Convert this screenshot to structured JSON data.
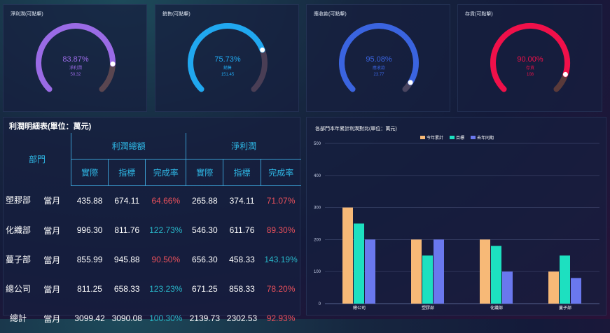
{
  "gauges": [
    {
      "title": "淨利潤(可點擊)",
      "percent": "83.87%",
      "label": "淨利潤",
      "value": "50.32",
      "color": "#9a6be6",
      "track": "#5a4650",
      "fraction": 0.8387
    },
    {
      "title": "銷售(可點擊)",
      "percent": "75.73%",
      "label": "銷售",
      "value": "151.45",
      "color": "#20a8f0",
      "track": "#4a3e55",
      "fraction": 0.7573
    },
    {
      "title": "應收款(可點擊)",
      "percent": "95.08%",
      "label": "應收款",
      "value": "23.77",
      "color": "#3a64e0",
      "track": "#4a4560",
      "fraction": 0.9508
    },
    {
      "title": "存貨(可點擊)",
      "percent": "90.00%",
      "label": "存貨",
      "value": "108",
      "color": "#f0104a",
      "track": "#5a3a3a",
      "fraction": 0.9
    }
  ],
  "table": {
    "title": "利潤明細表(單位：萬元)",
    "dept_header": "部門",
    "group1": "利潤總額",
    "group2": "淨利潤",
    "sub": [
      "實際",
      "指標",
      "完成率",
      "實際",
      "指標",
      "完成率"
    ],
    "rows": [
      {
        "dept": "塑膠部",
        "period": "當月",
        "c": [
          "435.88",
          "674.11",
          "64.66%",
          "265.88",
          "374.11",
          "71.07%"
        ]
      },
      {
        "dept": "化纖部",
        "period": "當月",
        "c": [
          "996.30",
          "811.76",
          "122.73%",
          "546.30",
          "611.76",
          "89.30%"
        ]
      },
      {
        "dept": "蔓子部",
        "period": "當月",
        "c": [
          "855.99",
          "945.88",
          "90.50%",
          "656.30",
          "458.33",
          "143.19%"
        ]
      },
      {
        "dept": "總公司",
        "period": "當月",
        "c": [
          "811.25",
          "658.33",
          "123.23%",
          "671.25",
          "858.33",
          "78.20%"
        ]
      },
      {
        "dept": "總計",
        "period": "當月",
        "c": [
          "3099.42",
          "3090.08",
          "100.30%",
          "2139.73",
          "2302.53",
          "92.93%"
        ]
      }
    ]
  },
  "chart_data": {
    "type": "bar",
    "title": "各部門本年累計利潤對比(單位：萬元)",
    "categories": [
      "總公司",
      "塑膠部",
      "化纖部",
      "蔓子部"
    ],
    "series": [
      {
        "name": "今年累計",
        "color": "#f7b977",
        "values": [
          300,
          200,
          200,
          100
        ]
      },
      {
        "name": "目標",
        "color": "#1de0c0",
        "values": [
          250,
          150,
          180,
          150
        ]
      },
      {
        "name": "去年同期",
        "color": "#6a78ee",
        "values": [
          200,
          200,
          100,
          80
        ]
      }
    ],
    "ylim": [
      0,
      500
    ],
    "yticks": [
      "0",
      "100",
      "200",
      "300",
      "400",
      "500"
    ],
    "grid": true,
    "legend": "top-center"
  }
}
